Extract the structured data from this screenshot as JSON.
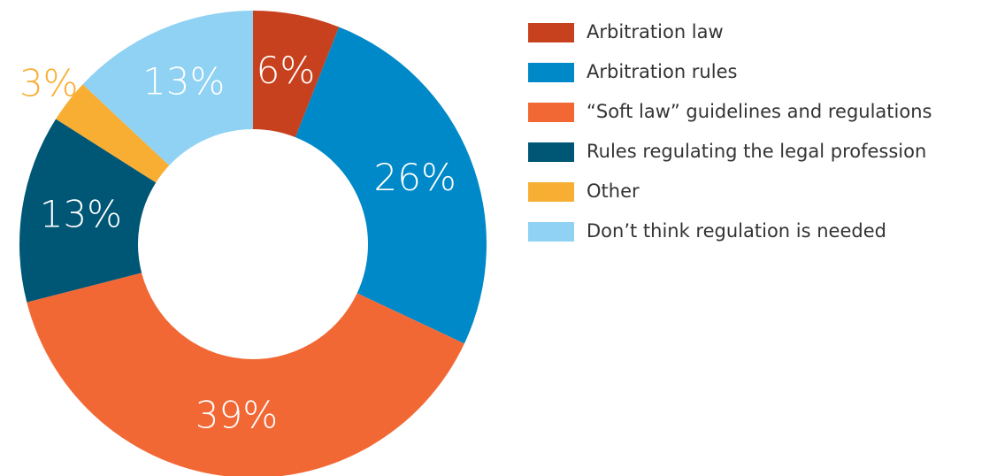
{
  "chart_data": {
    "type": "donut",
    "categories": [
      "Arbitration law",
      "Arbitration rules",
      "“Soft law” guidelines and regulations",
      "Rules regulating the legal profession",
      "Other",
      "Don’t think regulation is needed"
    ],
    "values": [
      6,
      26,
      39,
      13,
      3,
      13
    ],
    "value_labels": [
      "6%",
      "26%",
      "39%",
      "13%",
      "3%",
      "13%"
    ],
    "colors": [
      "#c8411e",
      "#0089c8",
      "#f26835",
      "#005675",
      "#f8ae33",
      "#8fd2f3"
    ],
    "legend": "right"
  }
}
